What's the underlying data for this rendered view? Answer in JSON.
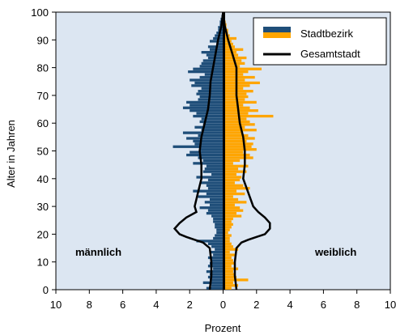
{
  "chart_data": {
    "type": "bar",
    "orientation": "horizontal-population-pyramid",
    "xlabel": "Prozent",
    "ylabel": "Alter in Jahren",
    "xlim": [
      -10,
      10
    ],
    "ylim": [
      0,
      100
    ],
    "x_ticks": [
      -10,
      -8,
      -6,
      -4,
      -2,
      0,
      2,
      4,
      6,
      8,
      10
    ],
    "x_tick_labels": [
      "10",
      "8",
      "6",
      "4",
      "2",
      "0",
      "2",
      "4",
      "6",
      "8",
      "10"
    ],
    "y_ticks": [
      0,
      10,
      20,
      30,
      40,
      50,
      60,
      70,
      80,
      90,
      100
    ],
    "y_tick_labels": [
      "0",
      "10",
      "20",
      "30",
      "40",
      "50",
      "60",
      "70",
      "80",
      "90",
      "100"
    ],
    "annotations": {
      "left": "männlich",
      "right": "weiblich"
    },
    "legend": {
      "placement": "top-right",
      "entries": [
        "Stadtbezirk",
        "Gesamtstadt"
      ]
    },
    "colors": {
      "male": "#1f4e79",
      "female": "#ffa500",
      "background": "#dce6f2",
      "total_line": "#000000"
    },
    "ages": [
      0,
      1,
      2,
      3,
      4,
      5,
      6,
      7,
      8,
      9,
      10,
      11,
      12,
      13,
      14,
      15,
      16,
      17,
      18,
      19,
      20,
      21,
      22,
      23,
      24,
      25,
      26,
      27,
      28,
      29,
      30,
      31,
      32,
      33,
      34,
      35,
      36,
      37,
      38,
      39,
      40,
      41,
      42,
      43,
      44,
      45,
      46,
      47,
      48,
      49,
      50,
      51,
      52,
      53,
      54,
      55,
      56,
      57,
      58,
      59,
      60,
      61,
      62,
      63,
      64,
      65,
      66,
      67,
      68,
      69,
      70,
      71,
      72,
      73,
      74,
      75,
      76,
      77,
      78,
      79,
      80,
      81,
      82,
      83,
      84,
      85,
      86,
      87,
      88,
      89,
      90,
      91,
      92,
      93,
      94,
      95,
      96,
      97,
      98,
      99
    ],
    "series": [
      {
        "name": "Stadtbezirk",
        "side": "männlich",
        "values": [
          1.0,
          0.7,
          1.2,
          0.8,
          0.9,
          0.8,
          1.0,
          0.6,
          0.9,
          0.8,
          0.7,
          0.9,
          0.6,
          0.8,
          0.5,
          0.7,
          0.9,
          1.6,
          0.6,
          0.5,
          0.4,
          0.4,
          0.5,
          0.5,
          0.6,
          0.6,
          0.7,
          1.0,
          0.9,
          1.4,
          0.8,
          1.1,
          0.8,
          1.5,
          1.0,
          1.8,
          0.9,
          1.0,
          1.4,
          0.9,
          1.6,
          0.7,
          1.2,
          1.1,
          1.0,
          1.8,
          1.2,
          1.5,
          2.2,
          2.0,
          1.4,
          3.0,
          1.7,
          1.8,
          2.2,
          1.5,
          2.4,
          1.3,
          1.7,
          1.2,
          1.4,
          1.3,
          1.8,
          1.6,
          2.0,
          2.4,
          2.0,
          2.2,
          1.5,
          1.4,
          1.6,
          1.5,
          1.3,
          1.9,
          1.7,
          2.0,
          1.4,
          1.1,
          2.1,
          1.8,
          1.4,
          1.3,
          1.2,
          0.9,
          1.0,
          1.3,
          0.8,
          0.9,
          0.4,
          0.8,
          0.6,
          0.5,
          0.4,
          0.3,
          0.3,
          0.2,
          0.2,
          0.15,
          0.1,
          0.05
        ]
      },
      {
        "name": "Stadtbezirk",
        "side": "weiblich",
        "values": [
          0.5,
          0.9,
          0.6,
          1.5,
          0.8,
          0.7,
          0.6,
          0.9,
          0.5,
          0.7,
          0.6,
          0.5,
          0.7,
          0.4,
          0.9,
          0.6,
          0.5,
          0.4,
          0.4,
          0.5,
          0.3,
          0.4,
          0.5,
          0.6,
          0.5,
          0.6,
          1.1,
          0.8,
          1.2,
          1.0,
          0.7,
          1.4,
          0.9,
          0.6,
          1.3,
          0.8,
          1.6,
          1.2,
          0.7,
          1.0,
          1.1,
          0.8,
          1.4,
          0.9,
          1.5,
          0.6,
          1.0,
          1.8,
          1.6,
          1.2,
          2.0,
          1.7,
          1.8,
          1.4,
          1.9,
          1.5,
          1.2,
          2.0,
          1.3,
          1.9,
          1.6,
          1.4,
          3.0,
          1.5,
          2.1,
          1.6,
          1.2,
          2.0,
          1.3,
          1.5,
          1.4,
          1.8,
          1.2,
          1.6,
          2.2,
          1.3,
          1.9,
          1.2,
          1.5,
          2.3,
          1.0,
          1.3,
          1.1,
          1.4,
          0.9,
          0.8,
          1.2,
          0.7,
          0.6,
          0.5,
          0.8,
          0.4,
          0.3,
          0.3,
          0.2,
          0.2,
          0.15,
          0.1,
          0.1,
          0.05
        ]
      },
      {
        "name": "Gesamtstadt",
        "side": "männlich",
        "ages": [
          0,
          5,
          10,
          15,
          17,
          18,
          19,
          20,
          22,
          24,
          26,
          28,
          30,
          35,
          40,
          45,
          50,
          55,
          60,
          65,
          70,
          75,
          80,
          85,
          90,
          95,
          100
        ],
        "values": [
          0.8,
          0.7,
          0.7,
          0.8,
          1.2,
          1.7,
          2.2,
          2.6,
          2.9,
          2.6,
          2.2,
          1.6,
          1.7,
          1.5,
          1.3,
          1.3,
          1.4,
          1.3,
          1.1,
          0.9,
          0.8,
          0.75,
          0.6,
          0.45,
          0.3,
          0.1,
          0.0
        ]
      },
      {
        "name": "Gesamtstadt",
        "side": "weiblich",
        "ages": [
          0,
          5,
          10,
          15,
          17,
          18,
          19,
          20,
          22,
          24,
          26,
          28,
          30,
          35,
          40,
          45,
          50,
          55,
          60,
          65,
          70,
          75,
          80,
          85,
          90,
          95,
          100
        ],
        "values": [
          0.8,
          0.7,
          0.7,
          0.8,
          1.1,
          1.5,
          2.0,
          2.5,
          2.8,
          2.8,
          2.5,
          2.1,
          1.8,
          1.5,
          1.2,
          1.3,
          1.3,
          1.2,
          1.0,
          0.9,
          0.8,
          0.8,
          0.8,
          0.55,
          0.3,
          0.1,
          0.0
        ]
      }
    ]
  }
}
